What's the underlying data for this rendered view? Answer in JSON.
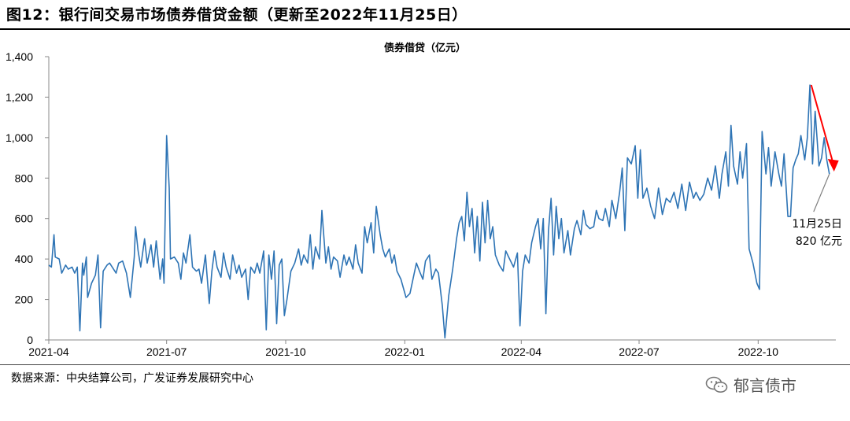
{
  "header": {
    "title": "图12：银行间交易市场债券借贷金额（更新至2022年11月25日）"
  },
  "footer": {
    "source": "数据来源：中央结算公司，广发证券发展研究中心",
    "watermark_text": "郁言债市",
    "watermark_icon": "wechat-icon"
  },
  "colors": {
    "series": "#2e74b5",
    "arrow": "#ff0000",
    "callout": "#7f7f7f"
  },
  "chart_data": {
    "type": "line",
    "title": "",
    "ylabel": "债券借贷（亿元）",
    "xlabel": "",
    "ylim": [
      0,
      1400
    ],
    "yticks": [
      0,
      200,
      400,
      600,
      800,
      1000,
      1200,
      1400
    ],
    "ytick_labels": [
      "0",
      "200",
      "400",
      "600",
      "800",
      "1,000",
      "1,200",
      "1,400"
    ],
    "xlim": [
      "2021-04-01",
      "2022-11-30"
    ],
    "xticks": [
      "2021-04-01",
      "2021-07-01",
      "2021-10-01",
      "2022-01-01",
      "2022-04-01",
      "2022-07-01",
      "2022-10-01"
    ],
    "xtick_labels": [
      "2021-04",
      "2021-07",
      "2021-10",
      "2022-01",
      "2022-04",
      "2022-07",
      "2022-10"
    ],
    "grid": false,
    "series": [
      {
        "values": [
          [
            "2021-04-01",
            370
          ],
          [
            "2021-04-03",
            360
          ],
          [
            "2021-04-05",
            520
          ],
          [
            "2021-04-06",
            410
          ],
          [
            "2021-04-09",
            400
          ],
          [
            "2021-04-11",
            330
          ],
          [
            "2021-04-14",
            370
          ],
          [
            "2021-04-16",
            350
          ],
          [
            "2021-04-19",
            360
          ],
          [
            "2021-04-21",
            330
          ],
          [
            "2021-04-23",
            360
          ],
          [
            "2021-04-25",
            45
          ],
          [
            "2021-04-27",
            380
          ],
          [
            "2021-04-28",
            320
          ],
          [
            "2021-04-30",
            410
          ],
          [
            "2021-05-01",
            210
          ],
          [
            "2021-05-04",
            280
          ],
          [
            "2021-05-07",
            320
          ],
          [
            "2021-05-09",
            420
          ],
          [
            "2021-05-11",
            60
          ],
          [
            "2021-05-13",
            340
          ],
          [
            "2021-05-16",
            370
          ],
          [
            "2021-05-18",
            380
          ],
          [
            "2021-05-20",
            360
          ],
          [
            "2021-05-23",
            330
          ],
          [
            "2021-05-25",
            380
          ],
          [
            "2021-05-28",
            390
          ],
          [
            "2021-05-31",
            330
          ],
          [
            "2021-06-03",
            210
          ],
          [
            "2021-06-06",
            410
          ],
          [
            "2021-06-07",
            560
          ],
          [
            "2021-06-09",
            440
          ],
          [
            "2021-06-11",
            360
          ],
          [
            "2021-06-14",
            500
          ],
          [
            "2021-06-16",
            380
          ],
          [
            "2021-06-19",
            470
          ],
          [
            "2021-06-21",
            360
          ],
          [
            "2021-06-23",
            490
          ],
          [
            "2021-06-26",
            300
          ],
          [
            "2021-06-28",
            400
          ],
          [
            "2021-06-29",
            280
          ],
          [
            "2021-07-01",
            1010
          ],
          [
            "2021-07-03",
            750
          ],
          [
            "2021-07-04",
            400
          ],
          [
            "2021-07-07",
            410
          ],
          [
            "2021-07-10",
            380
          ],
          [
            "2021-07-12",
            300
          ],
          [
            "2021-07-14",
            430
          ],
          [
            "2021-07-16",
            380
          ],
          [
            "2021-07-19",
            520
          ],
          [
            "2021-07-21",
            360
          ],
          [
            "2021-07-24",
            340
          ],
          [
            "2021-07-26",
            350
          ],
          [
            "2021-07-28",
            280
          ],
          [
            "2021-07-31",
            420
          ],
          [
            "2021-08-03",
            180
          ],
          [
            "2021-08-05",
            340
          ],
          [
            "2021-08-07",
            440
          ],
          [
            "2021-08-09",
            360
          ],
          [
            "2021-08-12",
            310
          ],
          [
            "2021-08-14",
            430
          ],
          [
            "2021-08-16",
            360
          ],
          [
            "2021-08-19",
            300
          ],
          [
            "2021-08-21",
            420
          ],
          [
            "2021-08-24",
            330
          ],
          [
            "2021-08-26",
            370
          ],
          [
            "2021-08-28",
            310
          ],
          [
            "2021-08-31",
            350
          ],
          [
            "2021-09-02",
            200
          ],
          [
            "2021-09-04",
            360
          ],
          [
            "2021-09-07",
            330
          ],
          [
            "2021-09-09",
            380
          ],
          [
            "2021-09-11",
            330
          ],
          [
            "2021-09-14",
            440
          ],
          [
            "2021-09-16",
            50
          ],
          [
            "2021-09-18",
            420
          ],
          [
            "2021-09-20",
            300
          ],
          [
            "2021-09-22",
            440
          ],
          [
            "2021-09-24",
            80
          ],
          [
            "2021-09-26",
            370
          ],
          [
            "2021-09-28",
            400
          ],
          [
            "2021-09-30",
            120
          ],
          [
            "2021-10-02",
            200
          ],
          [
            "2021-10-05",
            340
          ],
          [
            "2021-10-08",
            380
          ],
          [
            "2021-10-11",
            450
          ],
          [
            "2021-10-13",
            370
          ],
          [
            "2021-10-15",
            420
          ],
          [
            "2021-10-18",
            380
          ],
          [
            "2021-10-20",
            520
          ],
          [
            "2021-10-22",
            350
          ],
          [
            "2021-10-24",
            460
          ],
          [
            "2021-10-27",
            400
          ],
          [
            "2021-10-29",
            640
          ],
          [
            "2021-11-01",
            380
          ],
          [
            "2021-11-03",
            460
          ],
          [
            "2021-11-05",
            350
          ],
          [
            "2021-11-07",
            410
          ],
          [
            "2021-11-10",
            390
          ],
          [
            "2021-11-12",
            310
          ],
          [
            "2021-11-15",
            420
          ],
          [
            "2021-11-17",
            370
          ],
          [
            "2021-11-19",
            410
          ],
          [
            "2021-11-22",
            350
          ],
          [
            "2021-11-24",
            470
          ],
          [
            "2021-11-26",
            380
          ],
          [
            "2021-11-29",
            330
          ],
          [
            "2021-12-01",
            560
          ],
          [
            "2021-12-03",
            480
          ],
          [
            "2021-12-06",
            580
          ],
          [
            "2021-12-08",
            430
          ],
          [
            "2021-12-10",
            660
          ],
          [
            "2021-12-13",
            520
          ],
          [
            "2021-12-15",
            450
          ],
          [
            "2021-12-17",
            410
          ],
          [
            "2021-12-20",
            450
          ],
          [
            "2021-12-22",
            380
          ],
          [
            "2021-12-24",
            420
          ],
          [
            "2021-12-26",
            340
          ],
          [
            "2021-12-29",
            300
          ],
          [
            "2022-01-02",
            210
          ],
          [
            "2022-01-05",
            230
          ],
          [
            "2022-01-08",
            320
          ],
          [
            "2022-01-10",
            380
          ],
          [
            "2022-01-13",
            330
          ],
          [
            "2022-01-15",
            300
          ],
          [
            "2022-01-17",
            390
          ],
          [
            "2022-01-20",
            420
          ],
          [
            "2022-01-22",
            300
          ],
          [
            "2022-01-25",
            350
          ],
          [
            "2022-01-27",
            330
          ],
          [
            "2022-01-30",
            170
          ],
          [
            "2022-02-01",
            10
          ],
          [
            "2022-02-04",
            220
          ],
          [
            "2022-02-07",
            350
          ],
          [
            "2022-02-10",
            500
          ],
          [
            "2022-02-12",
            580
          ],
          [
            "2022-02-14",
            610
          ],
          [
            "2022-02-16",
            490
          ],
          [
            "2022-02-18",
            730
          ],
          [
            "2022-02-20",
            560
          ],
          [
            "2022-02-22",
            650
          ],
          [
            "2022-02-24",
            430
          ],
          [
            "2022-02-26",
            610
          ],
          [
            "2022-02-28",
            390
          ],
          [
            "2022-03-02",
            680
          ],
          [
            "2022-03-04",
            480
          ],
          [
            "2022-03-06",
            690
          ],
          [
            "2022-03-08",
            500
          ],
          [
            "2022-03-10",
            560
          ],
          [
            "2022-03-12",
            420
          ],
          [
            "2022-03-15",
            370
          ],
          [
            "2022-03-18",
            340
          ],
          [
            "2022-03-20",
            440
          ],
          [
            "2022-03-23",
            400
          ],
          [
            "2022-03-26",
            360
          ],
          [
            "2022-03-29",
            430
          ],
          [
            "2022-03-31",
            70
          ],
          [
            "2022-04-02",
            340
          ],
          [
            "2022-04-04",
            420
          ],
          [
            "2022-04-07",
            380
          ],
          [
            "2022-04-09",
            480
          ],
          [
            "2022-04-12",
            560
          ],
          [
            "2022-04-14",
            600
          ],
          [
            "2022-04-16",
            450
          ],
          [
            "2022-04-18",
            600
          ],
          [
            "2022-04-20",
            130
          ],
          [
            "2022-04-22",
            540
          ],
          [
            "2022-04-24",
            700
          ],
          [
            "2022-04-26",
            420
          ],
          [
            "2022-04-28",
            660
          ],
          [
            "2022-04-30",
            500
          ],
          [
            "2022-05-02",
            600
          ],
          [
            "2022-05-04",
            430
          ],
          [
            "2022-05-07",
            540
          ],
          [
            "2022-05-09",
            420
          ],
          [
            "2022-05-12",
            550
          ],
          [
            "2022-05-14",
            590
          ],
          [
            "2022-05-17",
            520
          ],
          [
            "2022-05-19",
            640
          ],
          [
            "2022-05-21",
            570
          ],
          [
            "2022-05-24",
            550
          ],
          [
            "2022-05-27",
            560
          ],
          [
            "2022-05-29",
            640
          ],
          [
            "2022-05-31",
            600
          ],
          [
            "2022-06-03",
            590
          ],
          [
            "2022-06-05",
            650
          ],
          [
            "2022-06-08",
            560
          ],
          [
            "2022-06-10",
            690
          ],
          [
            "2022-06-13",
            600
          ],
          [
            "2022-06-16",
            730
          ],
          [
            "2022-06-18",
            850
          ],
          [
            "2022-06-20",
            540
          ],
          [
            "2022-06-22",
            900
          ],
          [
            "2022-06-25",
            870
          ],
          [
            "2022-06-28",
            960
          ],
          [
            "2022-06-30",
            700
          ],
          [
            "2022-07-02",
            940
          ],
          [
            "2022-07-04",
            700
          ],
          [
            "2022-07-07",
            750
          ],
          [
            "2022-07-10",
            660
          ],
          [
            "2022-07-13",
            600
          ],
          [
            "2022-07-16",
            750
          ],
          [
            "2022-07-19",
            620
          ],
          [
            "2022-07-22",
            700
          ],
          [
            "2022-07-25",
            680
          ],
          [
            "2022-07-28",
            730
          ],
          [
            "2022-07-31",
            650
          ],
          [
            "2022-08-03",
            770
          ],
          [
            "2022-08-06",
            640
          ],
          [
            "2022-08-09",
            780
          ],
          [
            "2022-08-12",
            700
          ],
          [
            "2022-08-14",
            730
          ],
          [
            "2022-08-17",
            690
          ],
          [
            "2022-08-20",
            720
          ],
          [
            "2022-08-23",
            800
          ],
          [
            "2022-08-26",
            740
          ],
          [
            "2022-08-29",
            860
          ],
          [
            "2022-09-01",
            700
          ],
          [
            "2022-09-03",
            820
          ],
          [
            "2022-09-06",
            930
          ],
          [
            "2022-09-08",
            760
          ],
          [
            "2022-09-10",
            1060
          ],
          [
            "2022-09-12",
            860
          ],
          [
            "2022-09-15",
            770
          ],
          [
            "2022-09-17",
            930
          ],
          [
            "2022-09-19",
            800
          ],
          [
            "2022-09-22",
            970
          ],
          [
            "2022-09-24",
            450
          ],
          [
            "2022-09-27",
            380
          ],
          [
            "2022-09-30",
            280
          ],
          [
            "2022-10-02",
            250
          ],
          [
            "2022-10-04",
            1030
          ],
          [
            "2022-10-07",
            820
          ],
          [
            "2022-10-09",
            950
          ],
          [
            "2022-10-11",
            760
          ],
          [
            "2022-10-14",
            930
          ],
          [
            "2022-10-17",
            820
          ],
          [
            "2022-10-19",
            760
          ],
          [
            "2022-10-21",
            920
          ],
          [
            "2022-10-24",
            610
          ],
          [
            "2022-10-26",
            610
          ],
          [
            "2022-10-28",
            850
          ],
          [
            "2022-10-30",
            890
          ],
          [
            "2022-11-01",
            920
          ],
          [
            "2022-11-03",
            1010
          ],
          [
            "2022-11-06",
            890
          ],
          [
            "2022-11-08",
            1000
          ],
          [
            "2022-11-10",
            1260
          ],
          [
            "2022-11-12",
            870
          ],
          [
            "2022-11-14",
            1130
          ],
          [
            "2022-11-17",
            860
          ],
          [
            "2022-11-19",
            900
          ],
          [
            "2022-11-21",
            1000
          ],
          [
            "2022-11-23",
            890
          ],
          [
            "2022-11-25",
            820
          ]
        ]
      }
    ],
    "annotation": {
      "date": "2022-11-25",
      "label_line1": "11月25日",
      "label_line2": "820 亿元"
    },
    "trend_arrow": {
      "from": [
        "2022-11-11",
        1260
      ],
      "to": [
        "2022-11-28",
        840
      ]
    }
  }
}
